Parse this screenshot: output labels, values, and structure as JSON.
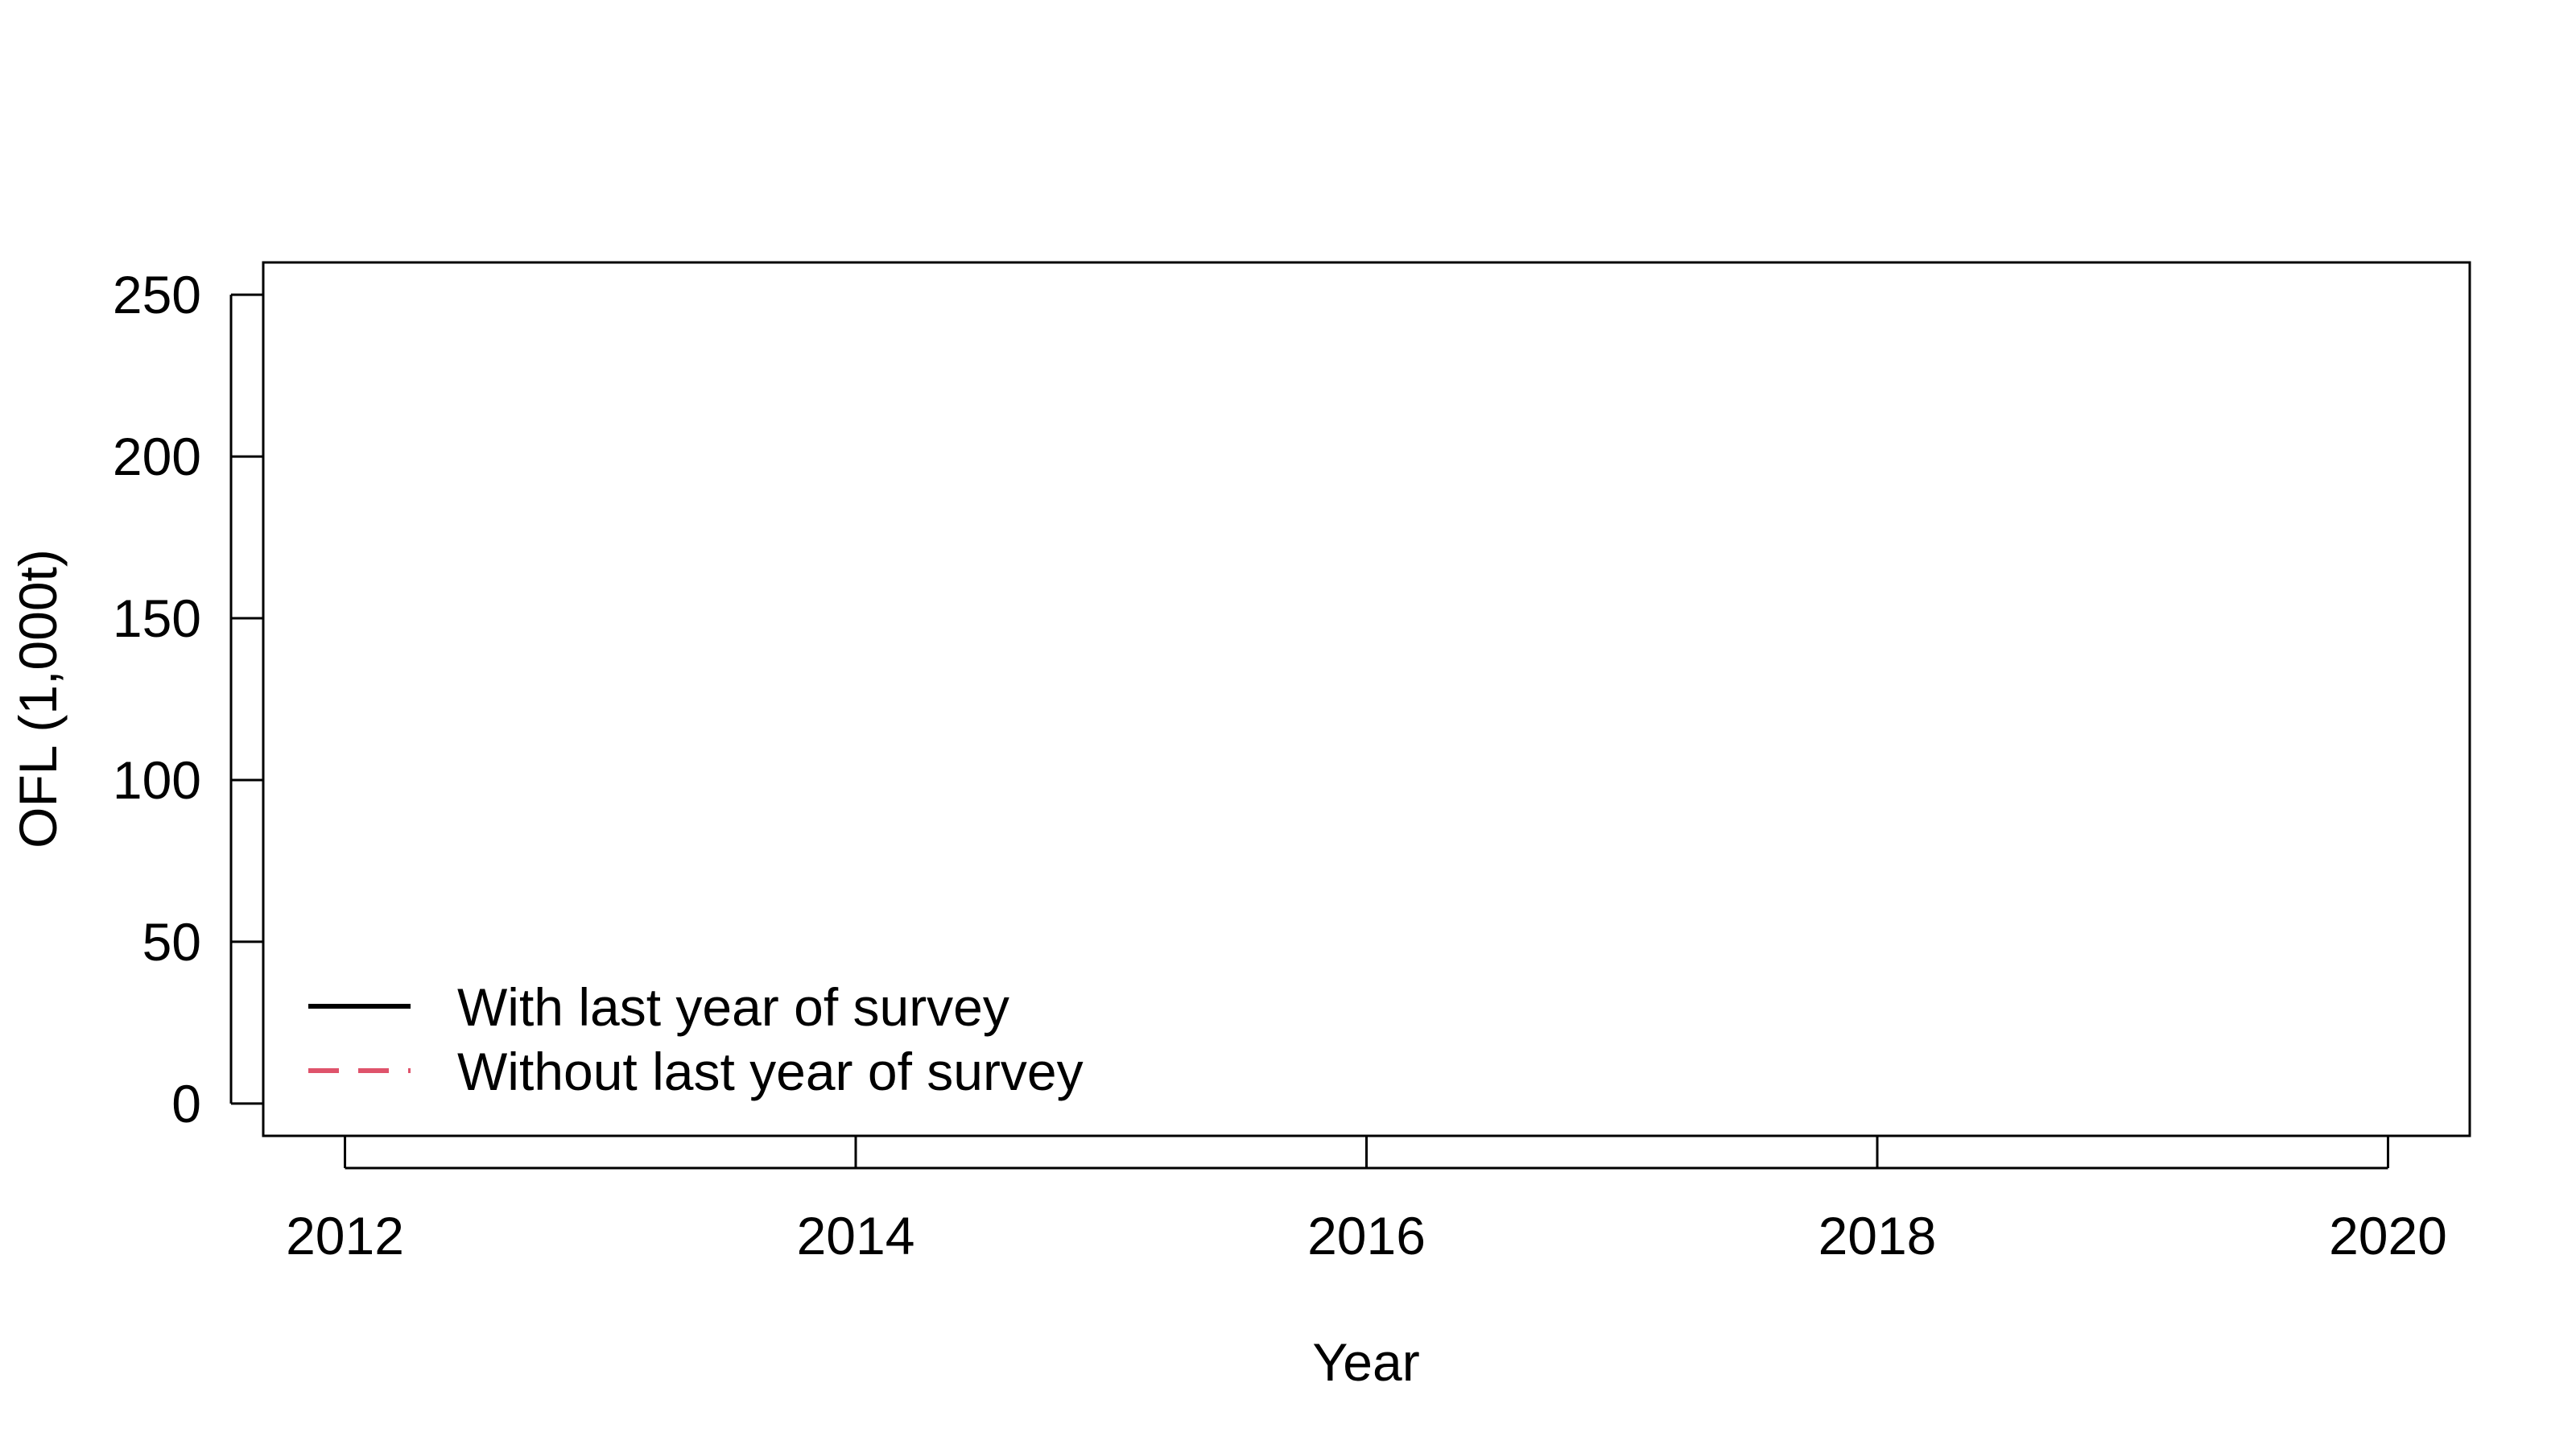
{
  "chart_data": {
    "type": "line",
    "title": "",
    "xlabel": "Year",
    "ylabel": "OFL (1,000t)",
    "xlim": [
      2011.68,
      2020.32
    ],
    "ylim": [
      -10,
      260
    ],
    "x_ticks": [
      "2012",
      "2014",
      "2016",
      "2018",
      "2020"
    ],
    "y_ticks": [
      "0",
      "50",
      "100",
      "150",
      "200",
      "250"
    ],
    "grid": false,
    "legend_position": "bottom-left",
    "series": [
      {
        "name": "With last year of survey",
        "color": "#000000",
        "line_style": "solid",
        "x": [],
        "y": []
      },
      {
        "name": "Without last year of survey",
        "color": "#DF536B",
        "line_style": "dashed",
        "x": [],
        "y": []
      }
    ]
  }
}
